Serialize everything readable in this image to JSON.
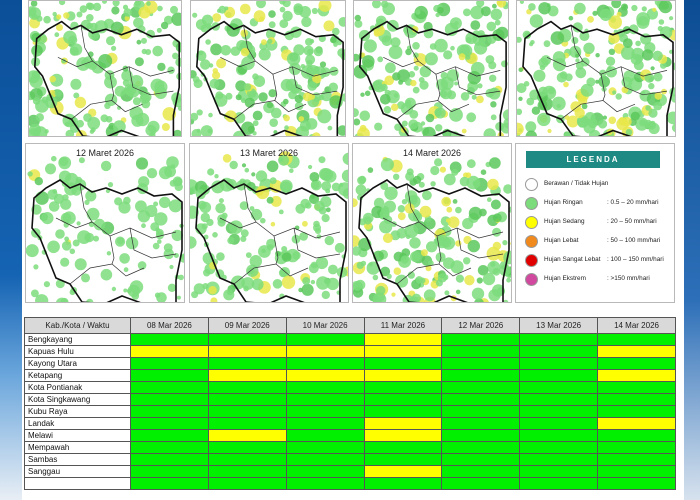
{
  "map_dates": [
    "",
    "",
    "",
    "",
    "12 Maret 2026",
    "13 Maret 2026",
    "14 Maret 2026"
  ],
  "map_intensity": [
    0.55,
    0.6,
    0.55,
    0.75,
    0.2,
    0.45,
    0.7
  ],
  "legend": {
    "title": "LEGENDA",
    "items": [
      {
        "label": "Berawan / Tidak Hujan",
        "range": "",
        "color": "#ffffff"
      },
      {
        "label": "Hujan Ringan",
        "range": ": 0.5 – 20 mm/hari",
        "color": "#7cdc7c"
      },
      {
        "label": "Hujan Sedang",
        "range": ": 20 – 50 mm/hari",
        "color": "#ffff00"
      },
      {
        "label": "Hujan Lebat",
        "range": ": 50 – 100 mm/hari",
        "color": "#f08a1c"
      },
      {
        "label": "Hujan Sangat Lebat",
        "range": ": 100 – 150 mm/hari",
        "color": "#e00000"
      },
      {
        "label": "Hujan Ekstrem",
        "range": ": >150 mm/hari",
        "color": "#d0499e"
      }
    ]
  },
  "table": {
    "header_label": "Kab./Kota / Waktu",
    "dates": [
      "08 Mar 2026",
      "09 Mar 2026",
      "10 Mar 2026",
      "11 Mar 2026",
      "12 Mar 2026",
      "13 Mar 2026",
      "14 Mar 2026"
    ],
    "colors": {
      "G": "#00f000",
      "Y": "#ffff00"
    },
    "rows": [
      {
        "name": "Bengkayang",
        "cells": [
          "G",
          "G",
          "G",
          "Y",
          "G",
          "G",
          "G"
        ]
      },
      {
        "name": "Kapuas Hulu",
        "cells": [
          "Y",
          "Y",
          "Y",
          "Y",
          "G",
          "G",
          "Y"
        ]
      },
      {
        "name": "Kayong Utara",
        "cells": [
          "G",
          "G",
          "G",
          "G",
          "G",
          "G",
          "G"
        ]
      },
      {
        "name": "Ketapang",
        "cells": [
          "G",
          "Y",
          "Y",
          "Y",
          "G",
          "G",
          "Y"
        ]
      },
      {
        "name": "Kota Pontianak",
        "cells": [
          "G",
          "G",
          "G",
          "G",
          "G",
          "G",
          "G"
        ]
      },
      {
        "name": "Kota Singkawang",
        "cells": [
          "G",
          "G",
          "G",
          "G",
          "G",
          "G",
          "G"
        ]
      },
      {
        "name": "Kubu Raya",
        "cells": [
          "G",
          "G",
          "G",
          "G",
          "G",
          "G",
          "G"
        ]
      },
      {
        "name": "Landak",
        "cells": [
          "G",
          "G",
          "G",
          "Y",
          "G",
          "G",
          "Y"
        ]
      },
      {
        "name": "Melawi",
        "cells": [
          "G",
          "Y",
          "G",
          "Y",
          "G",
          "G",
          "G"
        ]
      },
      {
        "name": "Mempawah",
        "cells": [
          "G",
          "G",
          "G",
          "G",
          "G",
          "G",
          "G"
        ]
      },
      {
        "name": "Sambas",
        "cells": [
          "G",
          "G",
          "G",
          "G",
          "G",
          "G",
          "G"
        ]
      },
      {
        "name": "Sanggau",
        "cells": [
          "G",
          "G",
          "G",
          "Y",
          "G",
          "G",
          "G"
        ]
      },
      {
        "name": "",
        "cells": [
          "G",
          "G",
          "G",
          "G",
          "G",
          "G",
          "G"
        ]
      }
    ]
  }
}
